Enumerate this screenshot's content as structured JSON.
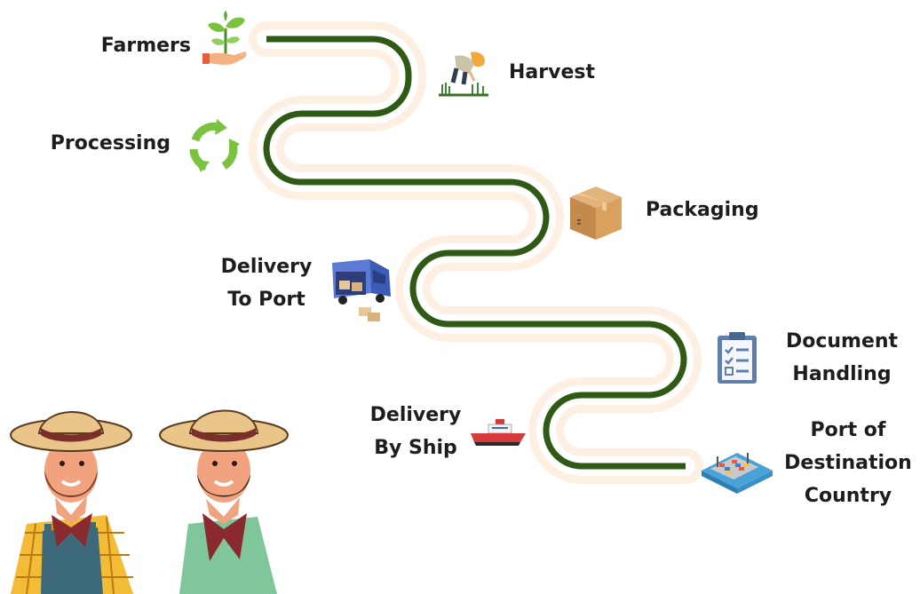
{
  "steps": [
    {
      "id": "farmers",
      "label_lines": [
        "Farmers"
      ],
      "icon": "sprout-hand-icon"
    },
    {
      "id": "harvest",
      "label_lines": [
        "Harvest"
      ],
      "icon": "farmer-harvesting-icon"
    },
    {
      "id": "processing",
      "label_lines": [
        "Processing"
      ],
      "icon": "recycle-arrows-icon"
    },
    {
      "id": "packaging",
      "label_lines": [
        "Packaging"
      ],
      "icon": "cardboard-box-icon"
    },
    {
      "id": "delivery-to-port",
      "label_lines": [
        "Delivery",
        "To Port"
      ],
      "icon": "delivery-truck-icon"
    },
    {
      "id": "document-handling",
      "label_lines": [
        "Document",
        "Handling"
      ],
      "icon": "clipboard-checklist-icon"
    },
    {
      "id": "delivery-by-ship",
      "label_lines": [
        "Delivery",
        "By Ship"
      ],
      "icon": "ship-icon"
    },
    {
      "id": "port-of-destination",
      "label_lines": [
        "Port of",
        "Destination",
        "Country"
      ],
      "icon": "cargo-port-icon"
    }
  ],
  "colors": {
    "path": "#2f5a16",
    "path_halo": "#fdeee0",
    "text": "#1d1d1d",
    "leaf": "#7cc242",
    "hat": "#e9c58a",
    "hat_band": "#7b2f2a",
    "skin": "#f1a27e"
  },
  "illustration": "two-farmers-illustration"
}
